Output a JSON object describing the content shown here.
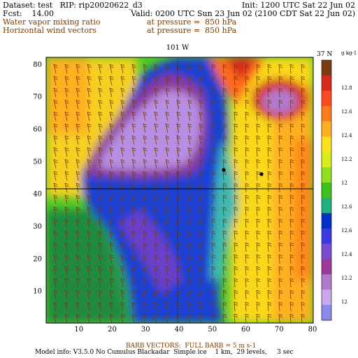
{
  "header": {
    "dataset": "Dataset: test   RIP: rip20020622_d3",
    "init": "Init: 1200 UTC Sat 22 Jun 02",
    "fcst": "Fcst:    14.00",
    "valid": "Valid: 0200 UTC Sun 23 Jun 02 (2100 CDT Sat 22 Jun 02)",
    "field1": "Water vapor mixing ratio",
    "field1_level": "at pressure =  850 hPa",
    "field2": "Horizontal wind vectors",
    "field2_level": "at pressure =  850 hPa"
  },
  "map": {
    "top_label": "101 W",
    "right_label": "37 N",
    "unit_label": "g kg-1",
    "x_ticks": [
      "10",
      "20",
      "30",
      "40",
      "50",
      "60",
      "70",
      "80"
    ],
    "y_ticks": [
      "10",
      "20",
      "30",
      "40",
      "50",
      "60",
      "70",
      "80"
    ],
    "colorbar_labels": [
      "12.8",
      "12.6",
      "12.4",
      "12.2",
      "12",
      "12.6",
      "12.6",
      "12.4",
      "12.2",
      "12"
    ],
    "colorbar_colors": [
      "#7a3b16",
      "#d62a1e",
      "#ff4a20",
      "#ff7a1c",
      "#ffb020",
      "#ffe01c",
      "#d8ee1c",
      "#90e020",
      "#40c020",
      "#20b080",
      "#0030c8",
      "#3a3ae0",
      "#7a4cd0",
      "#9a3a9a",
      "#b07acb",
      "#c8a8ec",
      "#8a8ae8"
    ]
  },
  "footer": {
    "barb_legend": "BARB VECTORS:  FULL BARB = 5 m s-1",
    "model_info": "Model info: V3.5.0 No Cumulus Blackadar  Simple ice    1 km,  29 levels,     3 sec"
  }
}
